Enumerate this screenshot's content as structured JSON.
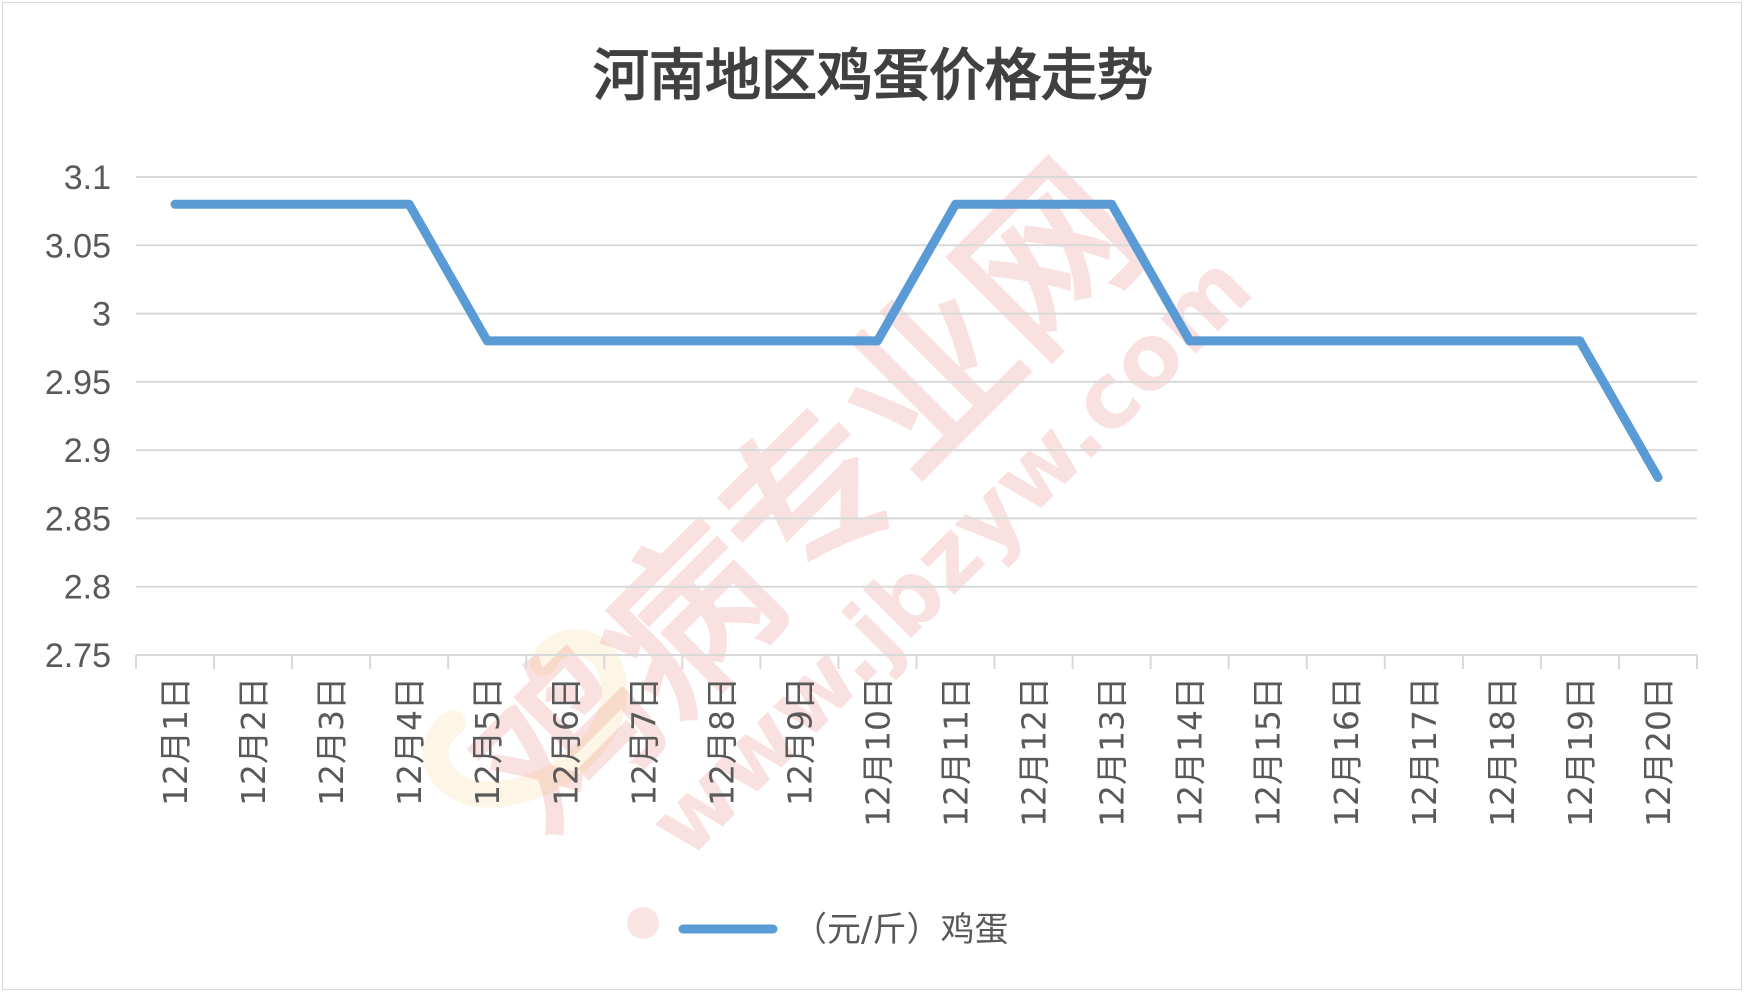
{
  "chart_data": {
    "type": "line",
    "title": "河南地区鸡蛋价格走势",
    "categories": [
      "12月1日",
      "12月2日",
      "12月3日",
      "12月4日",
      "12月5日",
      "12月6日",
      "12月7日",
      "12月8日",
      "12月9日",
      "12月10日",
      "12月11日",
      "12月12日",
      "12月13日",
      "12月14日",
      "12月15日",
      "12月16日",
      "12月17日",
      "12月18日",
      "12月19日",
      "12月20日"
    ],
    "series": [
      {
        "name": "（元/斤）鸡蛋",
        "color": "#5b9bd5",
        "values": [
          3.08,
          3.08,
          3.08,
          3.08,
          2.98,
          2.98,
          2.98,
          2.98,
          2.98,
          2.98,
          3.08,
          3.08,
          3.08,
          2.98,
          2.98,
          2.98,
          2.98,
          2.98,
          2.98,
          2.88
        ]
      }
    ],
    "ylim": [
      2.75,
      3.1
    ],
    "yticks": [
      "3.1",
      "3.05",
      "3",
      "2.95",
      "2.9",
      "2.85",
      "2.8",
      "2.75"
    ],
    "grid": true,
    "legend_position": "bottom"
  },
  "watermark": {
    "main": "鸡病专业网",
    "url": "www.jbzyw.com"
  }
}
